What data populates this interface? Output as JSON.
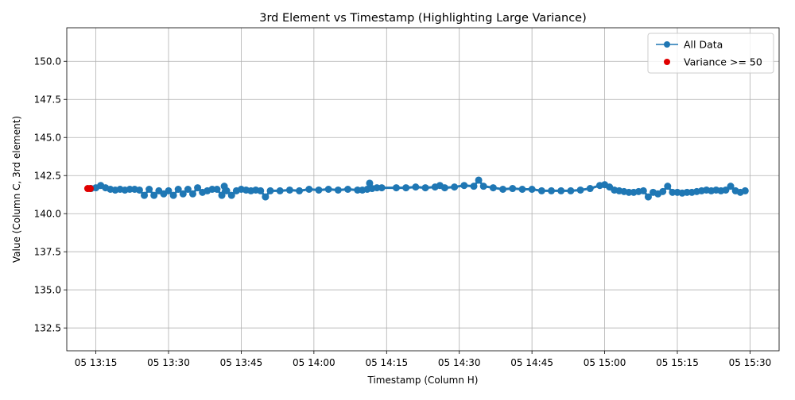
{
  "chart_data": {
    "type": "scatter",
    "title": "3rd Element vs Timestamp (Highlighting Large Variance)",
    "xlabel": "Timestamp (Column H)",
    "ylabel": "Value (Column C, 3rd element)",
    "xlim": [
      "05 13:09:00",
      "05 15:36:00"
    ],
    "ylim": [
      131.0,
      152.2
    ],
    "grid": true,
    "legend_position": "top-right",
    "x_ticks": [
      "05 13:15",
      "05 13:30",
      "05 13:45",
      "05 14:00",
      "05 14:15",
      "05 14:30",
      "05 14:45",
      "05 15:00",
      "05 15:15",
      "05 15:30"
    ],
    "y_ticks": [
      "132.5",
      "135.0",
      "137.5",
      "140.0",
      "142.5",
      "145.0",
      "147.5",
      "150.0"
    ],
    "colors": {
      "all_data": "#1f77b4",
      "variance": "#e00000",
      "grid": "#b0b0b0"
    },
    "series": [
      {
        "name": "All Data",
        "marker": "circle",
        "line": true,
        "points": [
          [
            "05 13:14:00",
            141.65
          ],
          [
            "05 13:15:00",
            141.7
          ],
          [
            "05 13:16:00",
            141.85
          ],
          [
            "05 13:17:00",
            141.7
          ],
          [
            "05 13:18:00",
            141.6
          ],
          [
            "05 13:19:00",
            141.55
          ],
          [
            "05 13:20:00",
            141.6
          ],
          [
            "05 13:21:00",
            141.55
          ],
          [
            "05 13:22:00",
            141.6
          ],
          [
            "05 13:23:00",
            141.6
          ],
          [
            "05 13:24:00",
            141.55
          ],
          [
            "05 13:25:00",
            141.2
          ],
          [
            "05 13:26:00",
            141.6
          ],
          [
            "05 13:27:00",
            141.2
          ],
          [
            "05 13:28:00",
            141.5
          ],
          [
            "05 13:29:00",
            141.3
          ],
          [
            "05 13:30:00",
            141.5
          ],
          [
            "05 13:31:00",
            141.2
          ],
          [
            "05 13:32:00",
            141.6
          ],
          [
            "05 13:33:00",
            141.3
          ],
          [
            "05 13:34:00",
            141.6
          ],
          [
            "05 13:35:00",
            141.3
          ],
          [
            "05 13:36:00",
            141.7
          ],
          [
            "05 13:37:00",
            141.4
          ],
          [
            "05 13:38:00",
            141.5
          ],
          [
            "05 13:39:00",
            141.6
          ],
          [
            "05 13:40:00",
            141.6
          ],
          [
            "05 13:41:00",
            141.2
          ],
          [
            "05 13:41:30",
            141.8
          ],
          [
            "05 13:42:00",
            141.5
          ],
          [
            "05 13:43:00",
            141.2
          ],
          [
            "05 13:44:00",
            141.5
          ],
          [
            "05 13:45:00",
            141.6
          ],
          [
            "05 13:46:00",
            141.55
          ],
          [
            "05 13:47:00",
            141.5
          ],
          [
            "05 13:48:00",
            141.55
          ],
          [
            "05 13:49:00",
            141.5
          ],
          [
            "05 13:50:00",
            141.1
          ],
          [
            "05 13:51:00",
            141.5
          ],
          [
            "05 13:53:00",
            141.5
          ],
          [
            "05 13:55:00",
            141.55
          ],
          [
            "05 13:57:00",
            141.5
          ],
          [
            "05 13:59:00",
            141.6
          ],
          [
            "05 14:01:00",
            141.55
          ],
          [
            "05 14:03:00",
            141.6
          ],
          [
            "05 14:05:00",
            141.55
          ],
          [
            "05 14:07:00",
            141.6
          ],
          [
            "05 14:09:00",
            141.55
          ],
          [
            "05 14:10:00",
            141.55
          ],
          [
            "05 14:11:00",
            141.6
          ],
          [
            "05 14:11:30",
            142.0
          ],
          [
            "05 14:12:00",
            141.65
          ],
          [
            "05 14:13:00",
            141.7
          ],
          [
            "05 14:14:00",
            141.7
          ],
          [
            "05 14:17:00",
            141.7
          ],
          [
            "05 14:19:00",
            141.7
          ],
          [
            "05 14:21:00",
            141.75
          ],
          [
            "05 14:23:00",
            141.7
          ],
          [
            "05 14:25:00",
            141.75
          ],
          [
            "05 14:26:00",
            141.85
          ],
          [
            "05 14:27:00",
            141.7
          ],
          [
            "05 14:29:00",
            141.75
          ],
          [
            "05 14:31:00",
            141.85
          ],
          [
            "05 14:33:00",
            141.8
          ],
          [
            "05 14:34:00",
            142.2
          ],
          [
            "05 14:35:00",
            141.8
          ],
          [
            "05 14:37:00",
            141.7
          ],
          [
            "05 14:39:00",
            141.6
          ],
          [
            "05 14:41:00",
            141.65
          ],
          [
            "05 14:43:00",
            141.6
          ],
          [
            "05 14:45:00",
            141.6
          ],
          [
            "05 14:47:00",
            141.5
          ],
          [
            "05 14:49:00",
            141.5
          ],
          [
            "05 14:51:00",
            141.5
          ],
          [
            "05 14:53:00",
            141.5
          ],
          [
            "05 14:55:00",
            141.55
          ],
          [
            "05 14:57:00",
            141.65
          ],
          [
            "05 14:59:00",
            141.85
          ],
          [
            "05 15:00:00",
            141.9
          ],
          [
            "05 15:01:00",
            141.75
          ],
          [
            "05 15:02:00",
            141.55
          ],
          [
            "05 15:03:00",
            141.5
          ],
          [
            "05 15:04:00",
            141.45
          ],
          [
            "05 15:05:00",
            141.4
          ],
          [
            "05 15:06:00",
            141.4
          ],
          [
            "05 15:07:00",
            141.45
          ],
          [
            "05 15:08:00",
            141.5
          ],
          [
            "05 15:09:00",
            141.1
          ],
          [
            "05 15:10:00",
            141.4
          ],
          [
            "05 15:11:00",
            141.3
          ],
          [
            "05 15:12:00",
            141.45
          ],
          [
            "05 15:13:00",
            141.8
          ],
          [
            "05 15:14:00",
            141.4
          ],
          [
            "05 15:15:00",
            141.4
          ],
          [
            "05 15:16:00",
            141.35
          ],
          [
            "05 15:17:00",
            141.4
          ],
          [
            "05 15:18:00",
            141.4
          ],
          [
            "05 15:19:00",
            141.45
          ],
          [
            "05 15:20:00",
            141.5
          ],
          [
            "05 15:21:00",
            141.55
          ],
          [
            "05 15:22:00",
            141.5
          ],
          [
            "05 15:23:00",
            141.55
          ],
          [
            "05 15:24:00",
            141.5
          ],
          [
            "05 15:25:00",
            141.55
          ],
          [
            "05 15:26:00",
            141.8
          ],
          [
            "05 15:27:00",
            141.5
          ],
          [
            "05 15:28:00",
            141.4
          ],
          [
            "05 15:29:00",
            141.5
          ]
        ]
      },
      {
        "name": "Variance >= 50",
        "marker": "circle",
        "line": false,
        "points": [
          [
            "05 13:13:20",
            141.65
          ],
          [
            "05 13:13:50",
            141.65
          ]
        ]
      }
    ]
  }
}
